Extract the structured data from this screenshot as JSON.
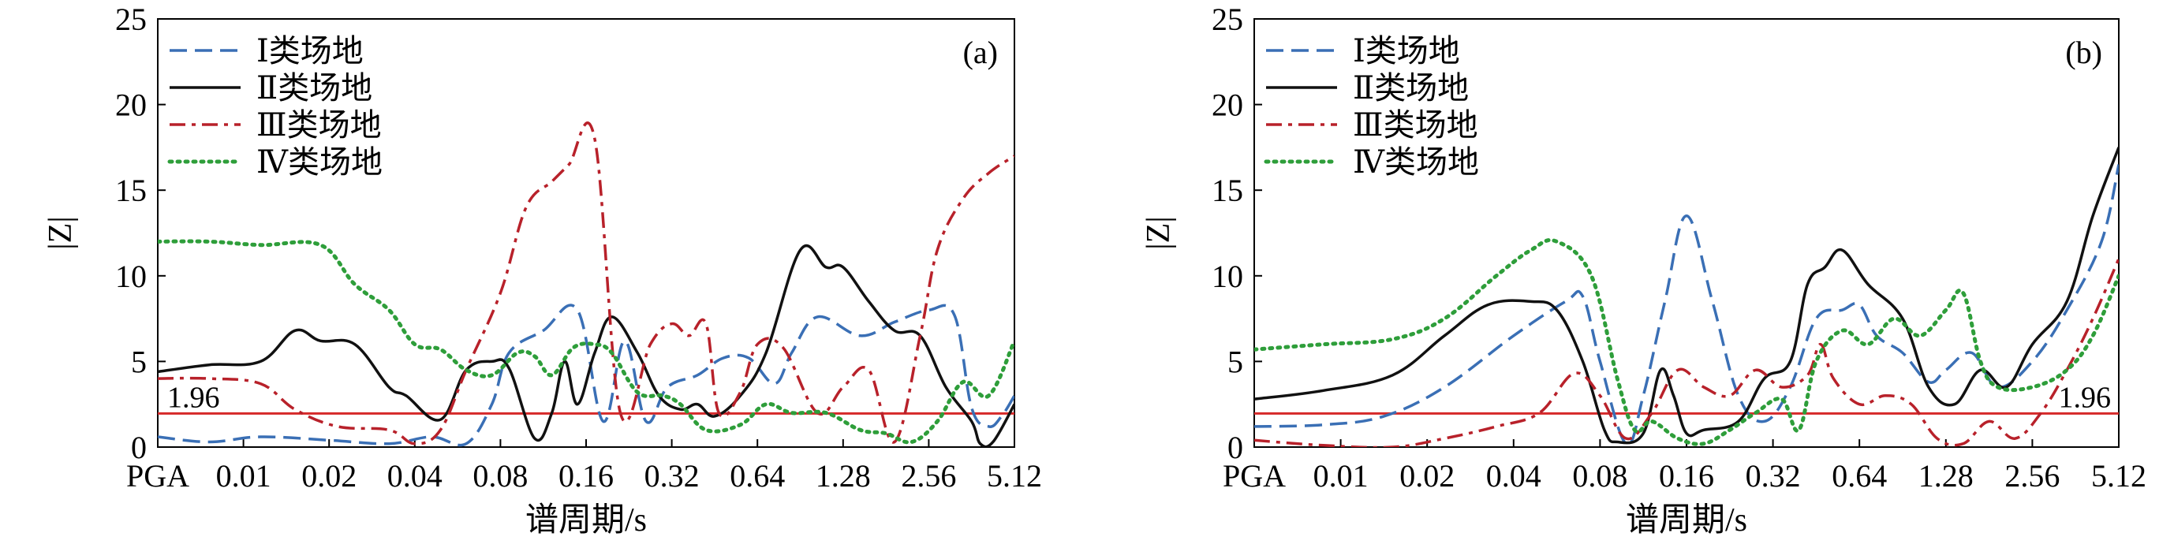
{
  "chart_data": [
    {
      "type": "line",
      "panel_label": "(a)",
      "xlabel": "谱周期/s",
      "ylabel": "|Z|",
      "x_tick_labels": [
        "PGA",
        "0.01",
        "0.02",
        "0.04",
        "0.08",
        "0.16",
        "0.32",
        "0.64",
        "1.28",
        "2.56",
        "5.12"
      ],
      "ylim": [
        0,
        25
      ],
      "y_ticks": [
        0,
        5,
        10,
        15,
        20,
        25
      ],
      "grid": false,
      "legend_position": "top-left",
      "reference_line": {
        "value": 1.96,
        "label": "1.96",
        "label_position": "left",
        "color": "#d62a2a"
      },
      "series": [
        {
          "name": "Ⅰ类场地",
          "color": "#3a6fb5",
          "dash": "dashed",
          "x": [
            0,
            0.6,
            1.2,
            2,
            2.7,
            3.2,
            3.6,
            3.9,
            4.1,
            4.5,
            4.9,
            5.2,
            5.45,
            5.7,
            5.95,
            6.3,
            6.6,
            6.9,
            7.2,
            7.4,
            7.7,
            8.2,
            8.6,
            9.0,
            9.3,
            9.5,
            9.7,
            9.85,
            10
          ],
          "y": [
            0.6,
            0.3,
            0.6,
            0.4,
            0.2,
            0.6,
            0.2,
            2.5,
            5.5,
            6.8,
            8.0,
            1.5,
            6.2,
            1.5,
            3.5,
            4.2,
            5.2,
            5.2,
            3.7,
            5.5,
            7.6,
            6.5,
            7.3,
            8.0,
            7.7,
            2.3,
            1.2,
            1.8,
            3.0
          ]
        },
        {
          "name": "Ⅱ类场地",
          "color": "#111111",
          "dash": "solid",
          "x": [
            0,
            0.6,
            1.2,
            1.6,
            1.9,
            2.3,
            2.7,
            2.9,
            3.3,
            3.6,
            3.9,
            4.1,
            4.4,
            4.6,
            4.75,
            4.9,
            5.1,
            5.3,
            5.6,
            5.85,
            6.1,
            6.3,
            6.5,
            6.8,
            7.1,
            7.5,
            7.8,
            8.0,
            8.3,
            8.6,
            8.9,
            9.2,
            9.5,
            9.6,
            9.75,
            10
          ],
          "y": [
            4.4,
            4.8,
            5.0,
            6.8,
            6.2,
            6.0,
            3.5,
            3.0,
            1.6,
            4.5,
            5.0,
            4.6,
            0.5,
            2.0,
            5.0,
            2.5,
            5.5,
            7.6,
            5.5,
            3.0,
            2.2,
            2.5,
            1.8,
            3.0,
            5.5,
            11.5,
            10.5,
            10.5,
            8.5,
            6.8,
            6.5,
            3.5,
            1.5,
            0.2,
            0.3,
            2.5
          ]
        },
        {
          "name": "Ⅲ类场地",
          "color": "#b8212a",
          "dash": "dashdot",
          "x": [
            0,
            0.6,
            1.2,
            1.6,
            2.1,
            2.7,
            3.0,
            3.3,
            3.6,
            4.0,
            4.3,
            4.6,
            4.8,
            5.1,
            5.4,
            5.75,
            6.0,
            6.2,
            6.4,
            6.55,
            6.8,
            7.0,
            7.3,
            7.7,
            8.0,
            8.3,
            8.6,
            8.9,
            9.1,
            9.4,
            9.7,
            10
          ],
          "y": [
            4.0,
            4.0,
            3.7,
            2.2,
            1.2,
            1.0,
            0.2,
            1.0,
            4.5,
            9.0,
            14.0,
            15.5,
            16.5,
            18.0,
            2.0,
            6.0,
            7.2,
            6.5,
            7.2,
            2.0,
            3.2,
            6.0,
            5.8,
            2.0,
            3.5,
            4.5,
            0.3,
            6.5,
            11.5,
            14.5,
            16.0,
            17.0
          ]
        },
        {
          "name": "Ⅳ类场地",
          "color": "#2e9e3a",
          "dash": "dotted",
          "x": [
            0,
            0.6,
            1.2,
            1.9,
            2.3,
            2.7,
            3.0,
            3.3,
            3.6,
            3.9,
            4.2,
            4.4,
            4.6,
            4.85,
            5.1,
            5.3,
            5.6,
            5.9,
            6.1,
            6.4,
            6.8,
            7.1,
            7.4,
            7.8,
            8.2,
            8.5,
            8.8,
            9.1,
            9.4,
            9.7,
            10
          ],
          "y": [
            12.0,
            12.0,
            11.8,
            11.8,
            9.5,
            8.0,
            6.0,
            5.7,
            4.5,
            4.2,
            5.5,
            5.3,
            4.2,
            5.8,
            6.0,
            5.5,
            3.2,
            3.0,
            2.5,
            1.0,
            1.3,
            2.5,
            2.0,
            2.0,
            1.0,
            0.8,
            0.3,
            1.5,
            3.8,
            3.0,
            6.2
          ]
        }
      ]
    },
    {
      "type": "line",
      "panel_label": "(b)",
      "xlabel": "谱周期/s",
      "ylabel": "|Z|",
      "x_tick_labels": [
        "PGA",
        "0.01",
        "0.02",
        "0.04",
        "0.08",
        "0.16",
        "0.32",
        "0.64",
        "1.28",
        "2.56",
        "5.12"
      ],
      "ylim": [
        0,
        25
      ],
      "y_ticks": [
        0,
        5,
        10,
        15,
        20,
        25
      ],
      "grid": false,
      "legend_position": "top-left",
      "reference_line": {
        "value": 1.96,
        "label": "1.96",
        "label_position": "right",
        "color": "#d62a2a"
      },
      "series": [
        {
          "name": "Ⅰ类场地",
          "color": "#3a6fb5",
          "dash": "dashed",
          "x": [
            0,
            0.8,
            1.5,
            2.2,
            3.0,
            3.6,
            3.8,
            4.0,
            4.3,
            4.5,
            4.75,
            5.0,
            5.3,
            5.6,
            5.9,
            6.2,
            6.5,
            6.8,
            7.0,
            7.2,
            7.5,
            7.8,
            8.0,
            8.3,
            8.6,
            9.0,
            9.4,
            9.8,
            10
          ],
          "y": [
            1.2,
            1.3,
            1.8,
            3.5,
            6.5,
            8.5,
            8.8,
            5.0,
            0.2,
            3.0,
            8.5,
            13.5,
            8.5,
            3.0,
            1.5,
            3.5,
            7.5,
            8.0,
            8.3,
            6.5,
            5.5,
            3.8,
            4.5,
            5.5,
            3.5,
            5.0,
            8.0,
            12.0,
            16.5
          ]
        },
        {
          "name": "Ⅱ类场地",
          "color": "#111111",
          "dash": "solid",
          "x": [
            0,
            0.8,
            1.6,
            2.2,
            2.7,
            3.2,
            3.5,
            3.8,
            4.05,
            4.2,
            4.5,
            4.7,
            4.85,
            5.0,
            5.2,
            5.6,
            5.9,
            6.2,
            6.4,
            6.6,
            6.8,
            7.1,
            7.5,
            7.8,
            8.1,
            8.4,
            8.7,
            9.0,
            9.4,
            9.7,
            10
          ],
          "y": [
            2.8,
            3.3,
            4.2,
            6.5,
            8.3,
            8.5,
            8.0,
            5.0,
            1.0,
            0.3,
            0.8,
            4.5,
            3.0,
            0.8,
            1.0,
            1.5,
            4.0,
            5.0,
            9.5,
            10.5,
            11.5,
            9.5,
            7.5,
            3.5,
            2.5,
            4.5,
            3.5,
            6.0,
            8.5,
            13.5,
            17.5
          ]
        },
        {
          "name": "Ⅲ类场地",
          "color": "#b8212a",
          "dash": "dashdot",
          "x": [
            0,
            0.8,
            1.6,
            2.2,
            2.8,
            3.3,
            3.7,
            4.0,
            4.3,
            4.6,
            4.9,
            5.2,
            5.5,
            5.8,
            6.1,
            6.4,
            6.55,
            6.7,
            7.0,
            7.3,
            7.6,
            7.9,
            8.2,
            8.5,
            8.8,
            9.1,
            9.4,
            9.7,
            10
          ],
          "y": [
            0.4,
            0.1,
            0.0,
            0.5,
            1.2,
            2.0,
            4.3,
            3.0,
            0.5,
            2.0,
            4.5,
            3.5,
            3.0,
            4.5,
            3.5,
            4.2,
            6.0,
            4.0,
            2.5,
            3.0,
            2.5,
            0.5,
            0.2,
            1.5,
            0.5,
            2.0,
            4.5,
            7.5,
            11.0
          ]
        },
        {
          "name": "Ⅳ类场地",
          "color": "#2e9e3a",
          "dash": "dotted",
          "x": [
            0,
            0.8,
            1.6,
            2.2,
            2.8,
            3.2,
            3.5,
            3.9,
            4.2,
            4.4,
            4.6,
            4.9,
            5.2,
            5.5,
            5.8,
            6.1,
            6.3,
            6.5,
            6.8,
            7.1,
            7.4,
            7.7,
            8.0,
            8.2,
            8.4,
            8.6,
            9.0,
            9.4,
            9.7,
            10
          ],
          "y": [
            5.7,
            6.0,
            6.3,
            7.5,
            10.0,
            11.5,
            12.0,
            10.0,
            4.0,
            1.0,
            1.5,
            0.5,
            0.2,
            1.0,
            2.0,
            2.8,
            1.0,
            5.0,
            6.8,
            6.0,
            7.5,
            6.5,
            8.0,
            9.0,
            5.0,
            3.5,
            3.5,
            4.5,
            6.5,
            10.0
          ]
        }
      ]
    }
  ]
}
